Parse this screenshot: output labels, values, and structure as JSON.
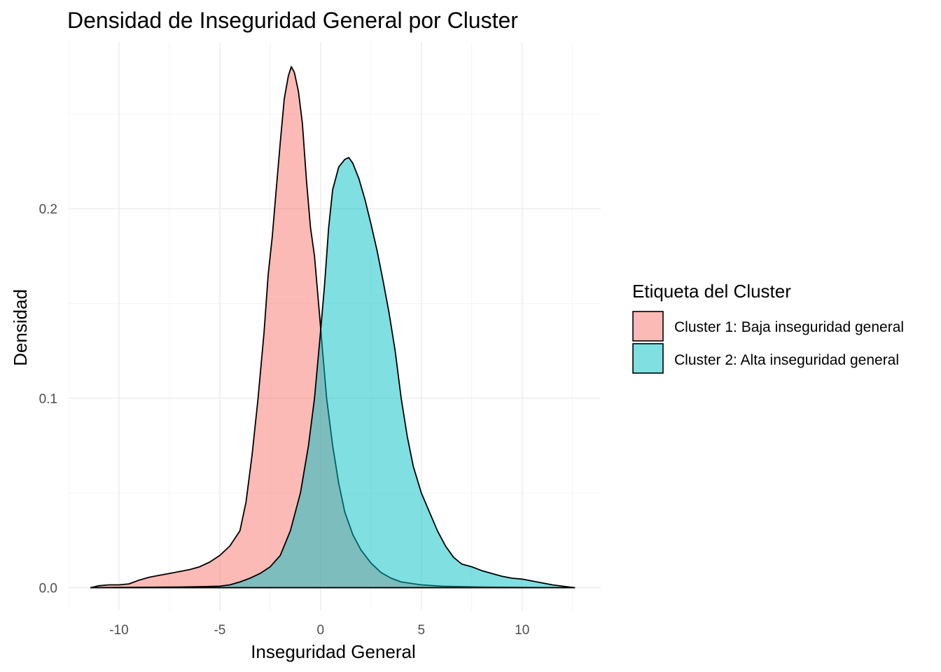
{
  "chart_data": {
    "type": "area",
    "subtype": "density",
    "title": "Densidad de Inseguridad General por Cluster",
    "xlabel": "Inseguridad General",
    "ylabel": "Densidad",
    "xlim": [
      -12.5,
      13.9
    ],
    "ylim": [
      -0.012,
      0.288
    ],
    "x_ticks": [
      -10,
      -5,
      0,
      5,
      10
    ],
    "x_tick_labels": [
      "-10",
      "-5",
      "0",
      "5",
      "10"
    ],
    "y_ticks": [
      0.0,
      0.1,
      0.2
    ],
    "y_tick_labels": [
      "0.0",
      "0.1",
      "0.2"
    ],
    "grid": true,
    "legend": {
      "title": "Etiqueta del Cluster",
      "position": "right"
    },
    "series": [
      {
        "name": "Cluster 1: Baja inseguridad general",
        "color": "#F8766D",
        "opacity": 0.5,
        "points": [
          [
            -11.4,
            0.0
          ],
          [
            -11.0,
            0.001
          ],
          [
            -10.5,
            0.0015
          ],
          [
            -10.0,
            0.0015
          ],
          [
            -9.5,
            0.002
          ],
          [
            -9.0,
            0.004
          ],
          [
            -8.5,
            0.0055
          ],
          [
            -8.0,
            0.0065
          ],
          [
            -7.5,
            0.0075
          ],
          [
            -7.0,
            0.0085
          ],
          [
            -6.5,
            0.0095
          ],
          [
            -6.0,
            0.011
          ],
          [
            -5.5,
            0.0135
          ],
          [
            -5.0,
            0.017
          ],
          [
            -4.5,
            0.022
          ],
          [
            -4.0,
            0.03
          ],
          [
            -3.7,
            0.045
          ],
          [
            -3.4,
            0.07
          ],
          [
            -3.1,
            0.1
          ],
          [
            -2.8,
            0.135
          ],
          [
            -2.6,
            0.165
          ],
          [
            -2.4,
            0.185
          ],
          [
            -2.2,
            0.21
          ],
          [
            -2.0,
            0.235
          ],
          [
            -1.8,
            0.258
          ],
          [
            -1.6,
            0.27
          ],
          [
            -1.45,
            0.275
          ],
          [
            -1.3,
            0.272
          ],
          [
            -1.1,
            0.262
          ],
          [
            -0.9,
            0.245
          ],
          [
            -0.7,
            0.215
          ],
          [
            -0.5,
            0.19
          ],
          [
            -0.3,
            0.175
          ],
          [
            -0.1,
            0.15
          ],
          [
            0.1,
            0.125
          ],
          [
            0.3,
            0.1
          ],
          [
            0.6,
            0.075
          ],
          [
            0.9,
            0.055
          ],
          [
            1.2,
            0.04
          ],
          [
            1.6,
            0.028
          ],
          [
            2.0,
            0.02
          ],
          [
            2.5,
            0.013
          ],
          [
            3.0,
            0.008
          ],
          [
            3.5,
            0.005
          ],
          [
            4.0,
            0.003
          ],
          [
            5.0,
            0.0015
          ],
          [
            6.0,
            0.0008
          ],
          [
            8.0,
            0.0003
          ],
          [
            10.0,
            0.0001
          ],
          [
            12.6,
            0.0
          ]
        ]
      },
      {
        "name": "Cluster 2: Alta inseguridad general",
        "color": "#00BFC4",
        "opacity": 0.5,
        "points": [
          [
            -11.4,
            0.0
          ],
          [
            -9.0,
            0.0002
          ],
          [
            -7.0,
            0.0003
          ],
          [
            -6.0,
            0.0005
          ],
          [
            -5.0,
            0.0008
          ],
          [
            -4.5,
            0.0015
          ],
          [
            -4.0,
            0.003
          ],
          [
            -3.5,
            0.005
          ],
          [
            -3.0,
            0.0075
          ],
          [
            -2.5,
            0.011
          ],
          [
            -2.0,
            0.017
          ],
          [
            -1.5,
            0.03
          ],
          [
            -1.0,
            0.05
          ],
          [
            -0.6,
            0.075
          ],
          [
            -0.3,
            0.1
          ],
          [
            0.0,
            0.135
          ],
          [
            0.2,
            0.16
          ],
          [
            0.4,
            0.19
          ],
          [
            0.6,
            0.21
          ],
          [
            0.9,
            0.222
          ],
          [
            1.2,
            0.226
          ],
          [
            1.4,
            0.227
          ],
          [
            1.6,
            0.224
          ],
          [
            1.9,
            0.216
          ],
          [
            2.2,
            0.205
          ],
          [
            2.5,
            0.192
          ],
          [
            2.8,
            0.178
          ],
          [
            3.1,
            0.162
          ],
          [
            3.4,
            0.145
          ],
          [
            3.7,
            0.125
          ],
          [
            4.0,
            0.1
          ],
          [
            4.3,
            0.08
          ],
          [
            4.6,
            0.064
          ],
          [
            5.0,
            0.05
          ],
          [
            5.4,
            0.04
          ],
          [
            5.8,
            0.03
          ],
          [
            6.2,
            0.022
          ],
          [
            6.6,
            0.016
          ],
          [
            7.0,
            0.0125
          ],
          [
            7.5,
            0.011
          ],
          [
            8.0,
            0.009
          ],
          [
            8.5,
            0.0075
          ],
          [
            9.0,
            0.006
          ],
          [
            9.5,
            0.005
          ],
          [
            10.0,
            0.0045
          ],
          [
            10.5,
            0.0035
          ],
          [
            11.0,
            0.0025
          ],
          [
            11.5,
            0.0015
          ],
          [
            12.0,
            0.0008
          ],
          [
            12.6,
            0.0
          ]
        ]
      }
    ]
  }
}
